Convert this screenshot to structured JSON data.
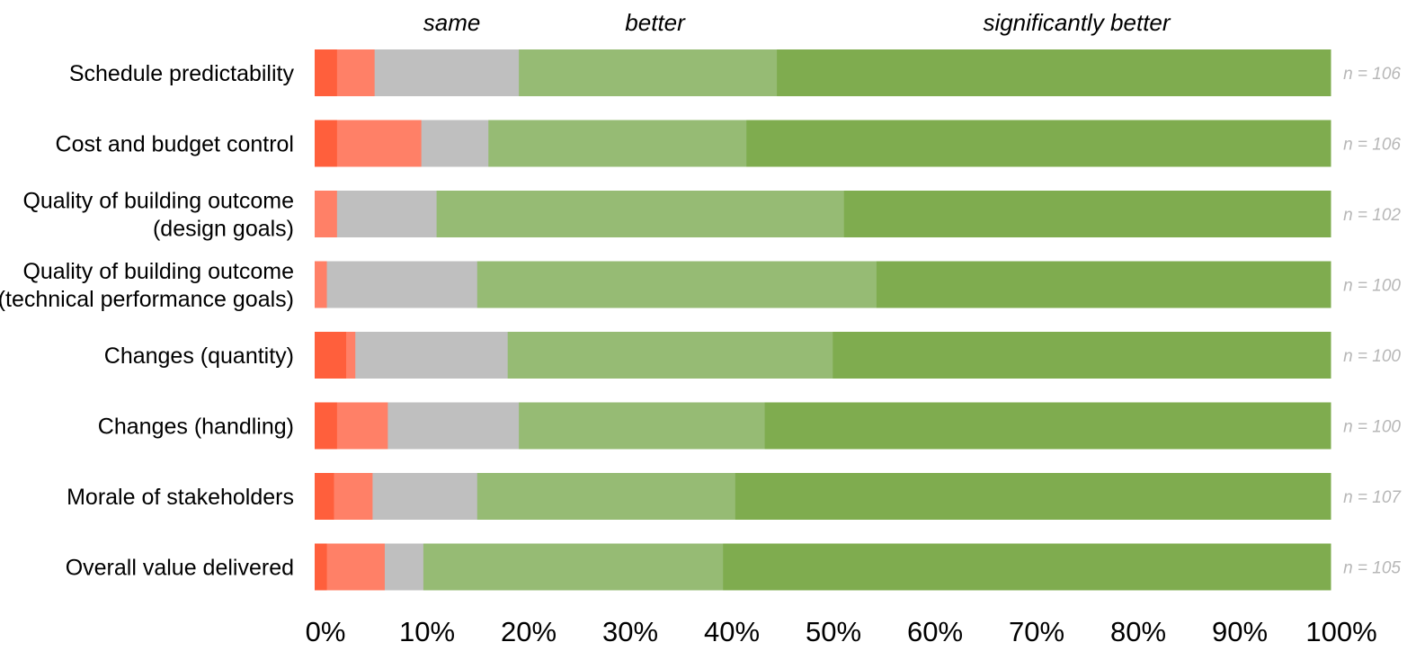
{
  "chart_data": {
    "type": "bar",
    "orientation": "horizontal",
    "stacked": true,
    "column_labels": [
      {
        "text": "same",
        "x": 13.5
      },
      {
        "text": "better",
        "x": 33.5
      },
      {
        "text": "significantly better",
        "x": 75
      }
    ],
    "categories": [
      [
        "Schedule predictability"
      ],
      [
        "Cost and budget control"
      ],
      [
        "Quality of building outcome",
        "(design goals)"
      ],
      [
        "Quality of building outcome",
        "(technical performance goals)"
      ],
      [
        "Changes (quantity)"
      ],
      [
        "Changes (handling)"
      ],
      [
        "Morale of stakeholders"
      ],
      [
        "Overall value delivered"
      ]
    ],
    "n_labels": [
      "n = 106",
      "n = 106",
      "n = 102",
      "n = 100",
      "n = 100",
      "n = 100",
      "n = 107",
      "n = 105"
    ],
    "series": [
      {
        "color": "#ff5f3c",
        "values": [
          2.2,
          2.2,
          0,
          0,
          3.1,
          2.2,
          1.9,
          1.2
        ]
      },
      {
        "color": "#ff8067",
        "values": [
          3.7,
          8.3,
          2.2,
          1.2,
          0.9,
          5.0,
          3.8,
          5.7
        ]
      },
      {
        "color": "#bfbfbf",
        "values": [
          14.2,
          6.6,
          9.8,
          14.8,
          15.0,
          12.9,
          10.3,
          3.8
        ]
      },
      {
        "color": "#96bb74",
        "values": [
          25.4,
          25.4,
          40.1,
          39.3,
          32.0,
          24.2,
          25.4,
          29.5
        ]
      },
      {
        "color": "#7fac4f",
        "values": [
          54.5,
          57.5,
          47.9,
          44.7,
          49.0,
          55.7,
          58.6,
          59.8
        ]
      }
    ],
    "xlim": [
      0,
      100
    ],
    "xticks": [
      "0%",
      "10%",
      "20%",
      "30%",
      "40%",
      "50%",
      "60%",
      "70%",
      "80%",
      "90%",
      "100%"
    ],
    "grid": false,
    "legend": "none"
  }
}
